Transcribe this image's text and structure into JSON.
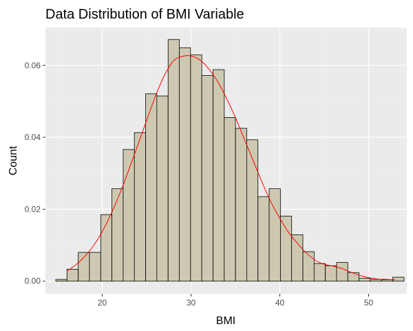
{
  "chart_data": {
    "type": "bar",
    "title": "Data Distribution of BMI Variable",
    "xlabel": "BMI",
    "ylabel": "Count",
    "xlim": [
      13.6,
      54.3
    ],
    "ylim": [
      -0.0035,
      0.0705
    ],
    "x_ticks": [
      20,
      30,
      40,
      50
    ],
    "y_ticks": [
      0.0,
      0.02,
      0.04,
      0.06
    ],
    "y_tick_labels": [
      "0.00",
      "0.02",
      "0.04",
      "0.06"
    ],
    "grid": true,
    "legend": "none",
    "colors": {
      "panel": "#ebebeb",
      "bar_fill": "#cdc9b1",
      "bar_outline": "#000000",
      "density_line": "#ff0000"
    },
    "bin_width": 1.265,
    "bin_centers": [
      15.4,
      16.66,
      17.93,
      19.19,
      20.46,
      21.72,
      22.99,
      24.25,
      25.52,
      26.78,
      28.05,
      29.31,
      30.58,
      31.84,
      33.11,
      34.37,
      35.64,
      36.9,
      38.17,
      39.43,
      40.7,
      41.96,
      43.23,
      44.49,
      45.76,
      47.02,
      48.29,
      49.55,
      50.82,
      52.08,
      53.35
    ],
    "values": [
      0.0005,
      0.0033,
      0.008,
      0.008,
      0.0185,
      0.0257,
      0.0366,
      0.0413,
      0.0521,
      0.0515,
      0.0672,
      0.0649,
      0.0629,
      0.0572,
      0.0588,
      0.0455,
      0.0425,
      0.0393,
      0.0235,
      0.0257,
      0.0181,
      0.0129,
      0.0082,
      0.0049,
      0.0043,
      0.0052,
      0.0024,
      0.0008,
      0.0005,
      0.0004,
      0.0011
    ],
    "density_x": [
      16.0,
      17.0,
      18.0,
      19.0,
      20.0,
      21.0,
      22.0,
      23.0,
      24.0,
      25.0,
      26.0,
      27.0,
      28.0,
      29.0,
      30.0,
      31.0,
      32.0,
      33.0,
      34.0,
      35.0,
      36.0,
      37.0,
      38.0,
      39.0,
      40.0,
      41.0,
      42.0,
      43.0,
      44.0,
      45.0,
      46.0,
      47.0,
      48.0,
      49.0,
      50.0,
      51.0,
      52.0,
      53.0
    ],
    "density_y": [
      0.0028,
      0.0045,
      0.0068,
      0.0098,
      0.0138,
      0.0187,
      0.0245,
      0.031,
      0.0378,
      0.0447,
      0.0515,
      0.0572,
      0.0612,
      0.0625,
      0.0626,
      0.0615,
      0.059,
      0.0555,
      0.0508,
      0.0455,
      0.0395,
      0.0335,
      0.0275,
      0.022,
      0.0175,
      0.0135,
      0.0105,
      0.0078,
      0.0058,
      0.0047,
      0.0042,
      0.0035,
      0.0025,
      0.0016,
      0.001,
      0.0006,
      0.0005,
      0.0004
    ]
  }
}
